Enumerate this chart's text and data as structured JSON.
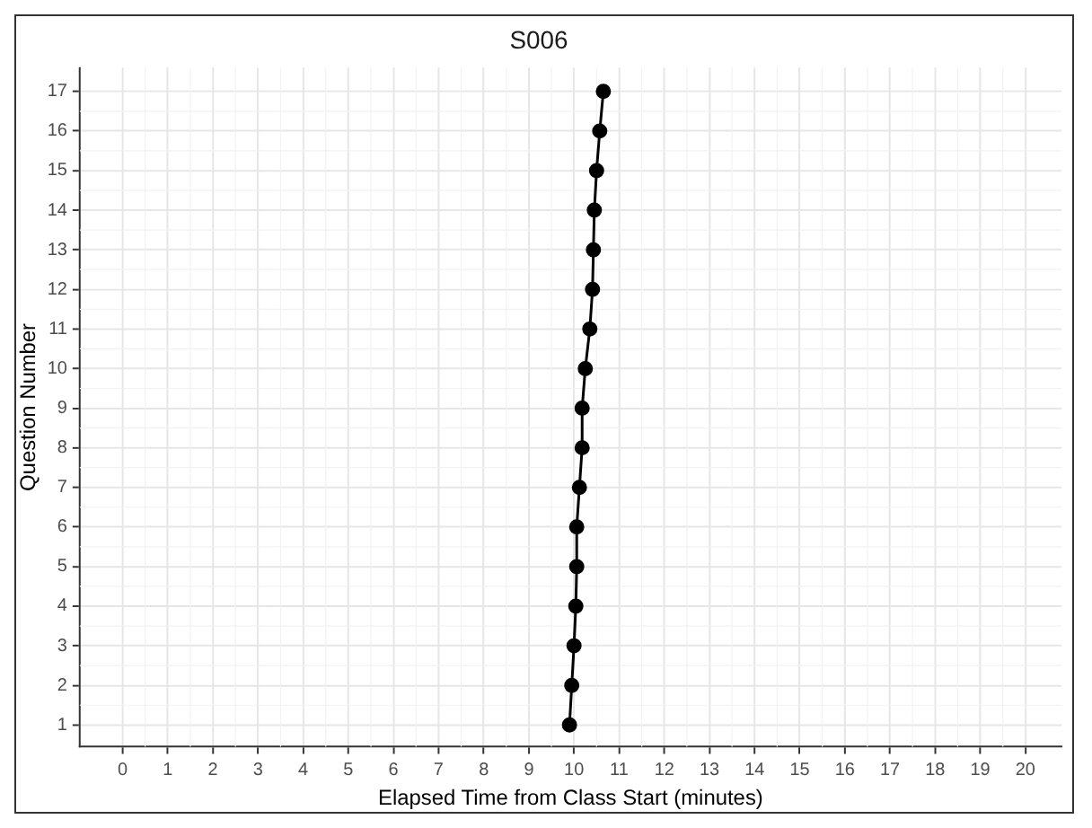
{
  "chart_data": {
    "type": "line",
    "title": "S006",
    "xlabel": "Elapsed Time from Class Start (minutes)",
    "ylabel": "Question Number",
    "x": [
      9.9,
      9.95,
      10.0,
      10.04,
      10.06,
      10.06,
      10.12,
      10.18,
      10.18,
      10.25,
      10.35,
      10.41,
      10.43,
      10.45,
      10.5,
      10.57,
      10.65
    ],
    "series": [
      {
        "color": "#000000",
        "values": [
          1,
          2,
          3,
          4,
          5,
          6,
          7,
          8,
          9,
          10,
          11,
          12,
          13,
          14,
          15,
          16,
          17
        ]
      }
    ],
    "xlim": [
      -0.95,
      20.8
    ],
    "xticks": [
      0,
      1,
      2,
      3,
      4,
      5,
      6,
      7,
      8,
      9,
      10,
      11,
      12,
      13,
      14,
      15,
      16,
      17,
      18,
      19,
      20
    ],
    "ylim": [
      0.45,
      17.6
    ],
    "yticks": [
      1,
      2,
      3,
      4,
      5,
      6,
      7,
      8,
      9,
      10,
      11,
      12,
      13,
      14,
      15,
      16,
      17
    ],
    "grid": true,
    "marker": "circle",
    "line_style": "solid",
    "legend": false
  }
}
